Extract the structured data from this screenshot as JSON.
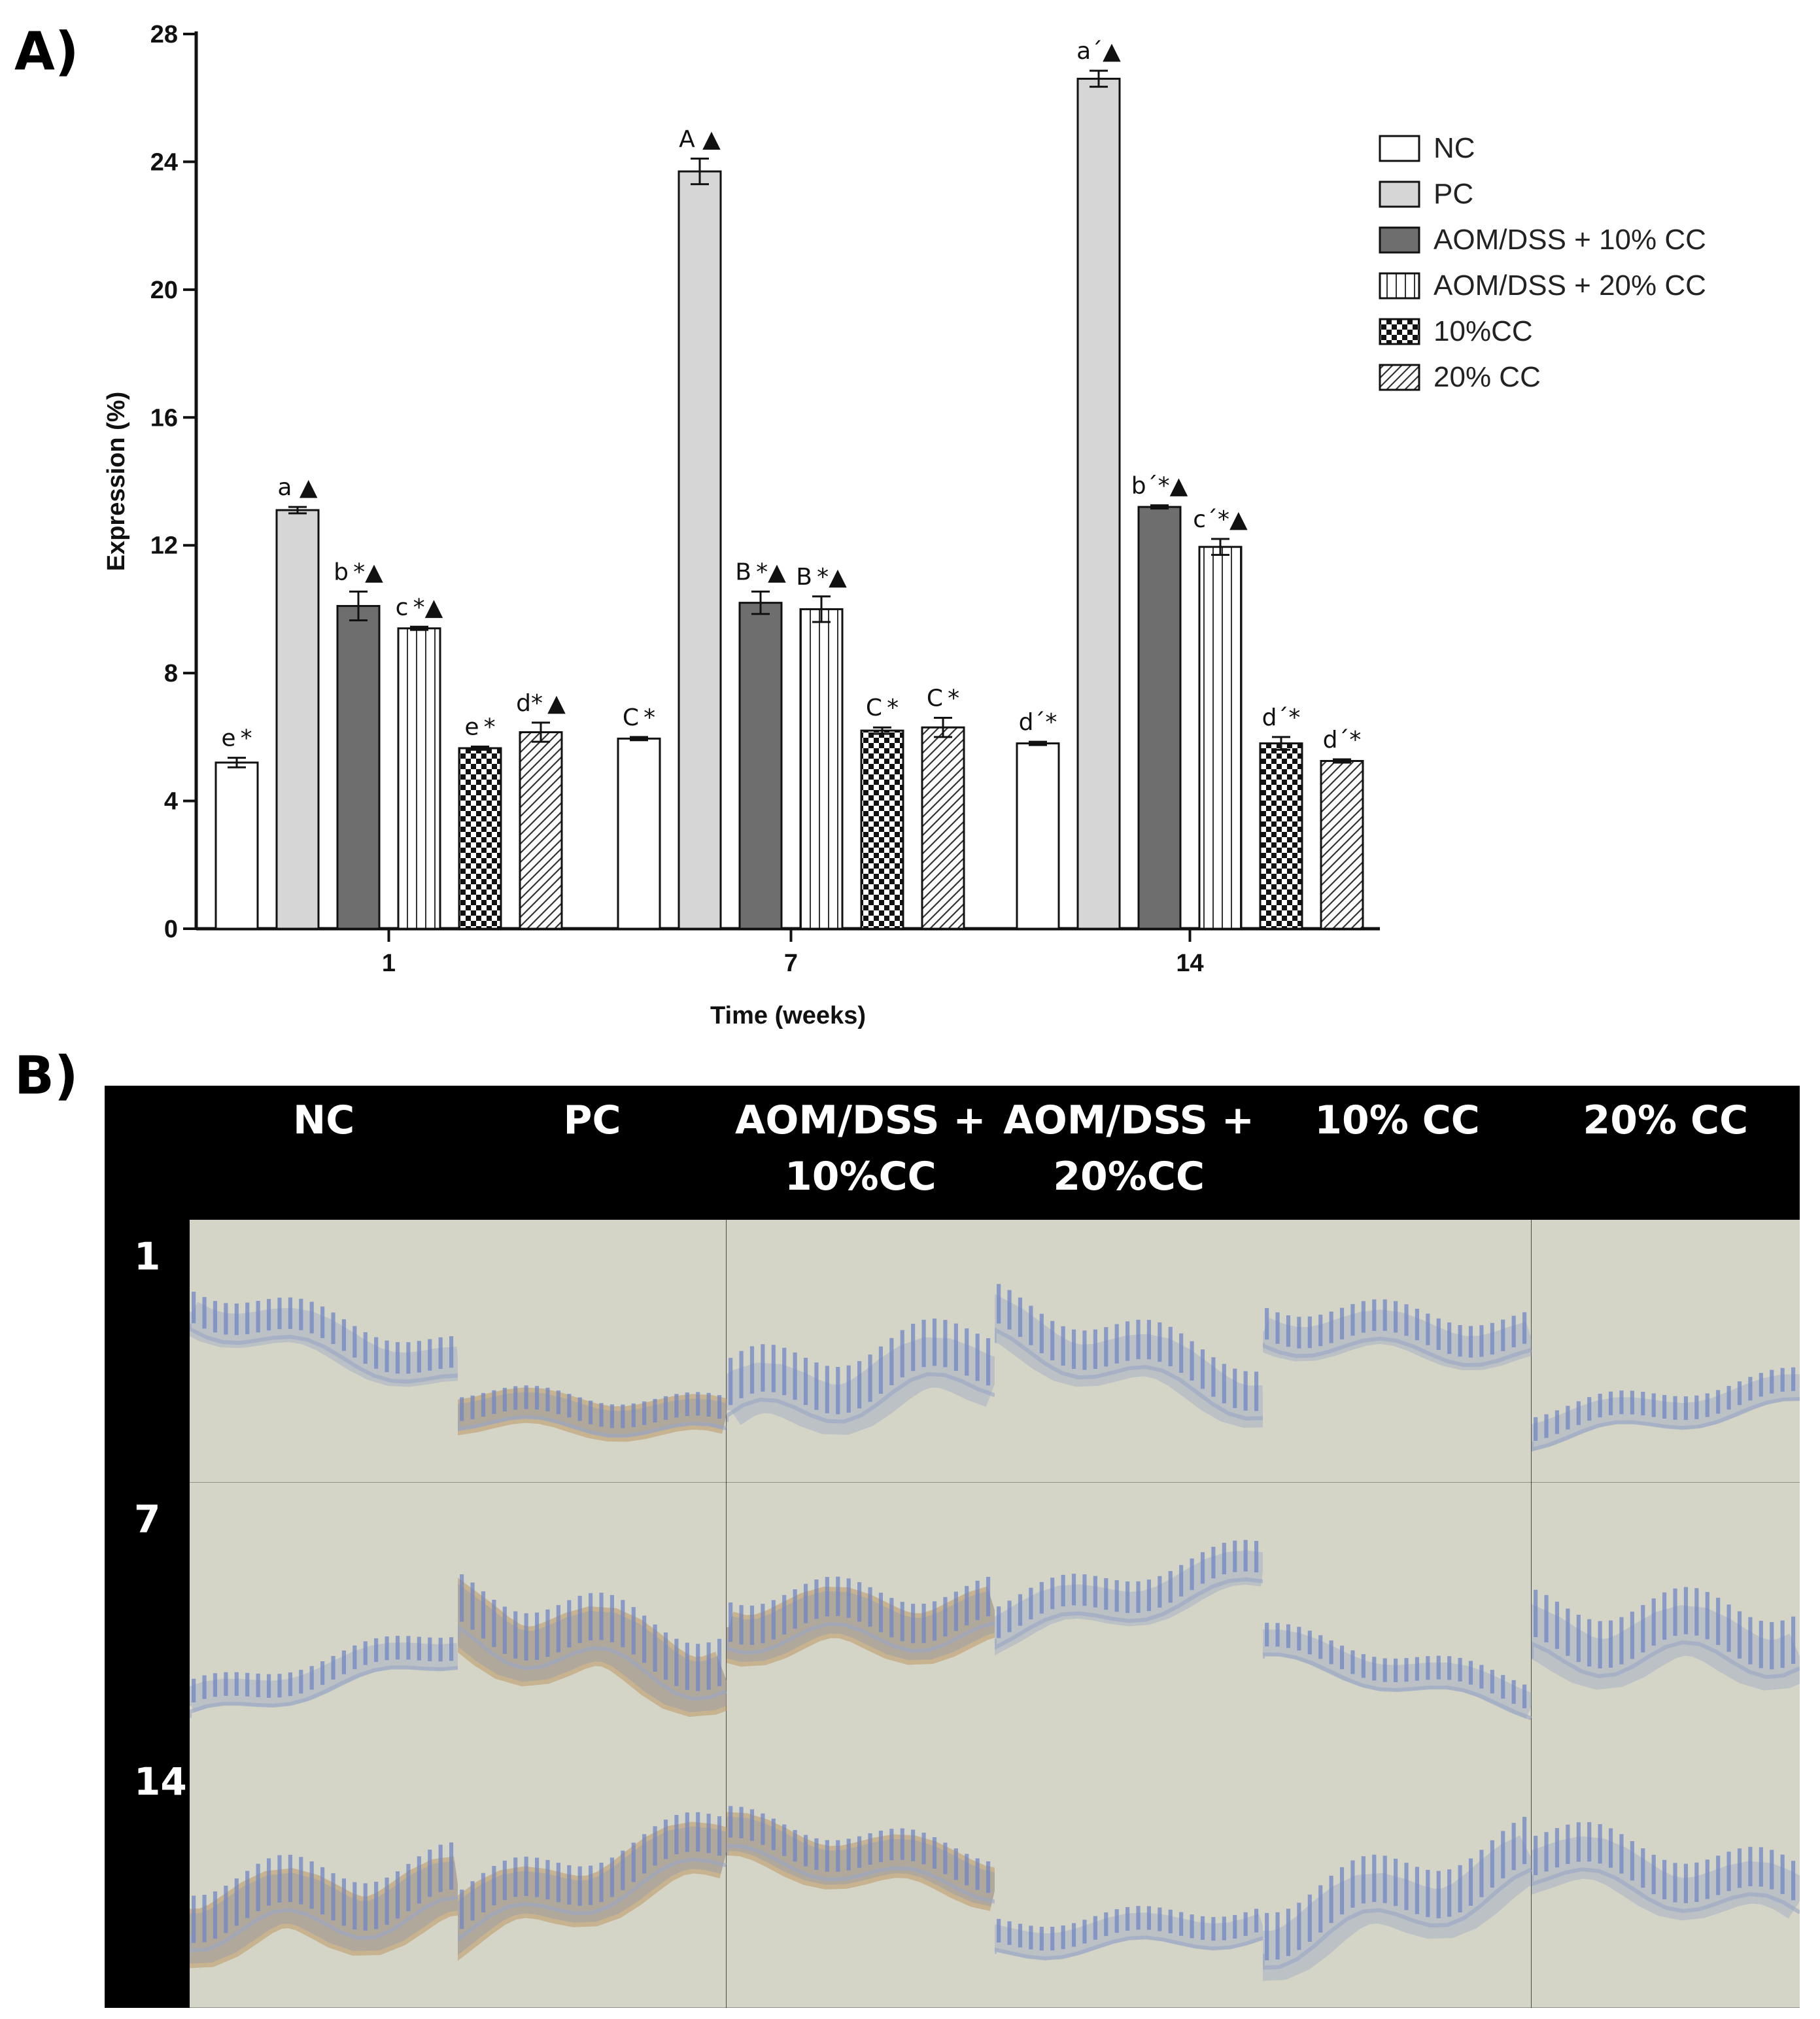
{
  "panel_a_label": "A)",
  "panel_b_label": "B)",
  "colors": {
    "NC": "#ffffff",
    "PC": "#d6d6d6",
    "AOM/DSS + 10% CC": "#6e6e6e",
    "AOM/DSS + 20% CC": "#ffffff",
    "10%CC": "#111111",
    "20% CC": "#ffffff",
    "tissue_bg": "#d9dfc6",
    "tissue_stain": "#6f86c4",
    "tissue_brown": "#b98a4c"
  },
  "chart_data": {
    "type": "bar",
    "title": "",
    "xlabel": "Time (weeks)",
    "ylabel": "Expression (%)",
    "ylim": [
      0,
      28
    ],
    "yticks": [
      0,
      4,
      8,
      12,
      16,
      20,
      24,
      28
    ],
    "categories": [
      "1",
      "7",
      "14"
    ],
    "legend": [
      "NC",
      "PC",
      "AOM/DSS + 10% CC",
      "AOM/DSS + 20% CC",
      "10%CC",
      "20% CC"
    ],
    "legend_position": "top-right",
    "series": [
      {
        "name": "NC",
        "pattern": "white",
        "values": [
          5.2,
          5.95,
          5.8
        ],
        "errors": [
          0.15,
          0.05,
          0.05
        ],
        "labels": [
          "e *",
          "C *",
          "d´*"
        ]
      },
      {
        "name": "PC",
        "pattern": "lightgray",
        "values": [
          13.1,
          23.7,
          26.6
        ],
        "errors": [
          0.1,
          0.4,
          0.25
        ],
        "labels": [
          "a ▲",
          "A ▲",
          "a´▲"
        ]
      },
      {
        "name": "AOM/DSS + 10% CC",
        "pattern": "darkgray",
        "values": [
          10.1,
          10.2,
          13.2
        ],
        "errors": [
          0.45,
          0.35,
          0.05
        ],
        "labels": [
          "b *▲",
          "B *▲",
          "b´*▲"
        ]
      },
      {
        "name": "AOM/DSS + 20% CC",
        "pattern": "vertical",
        "values": [
          9.4,
          10.0,
          11.95
        ],
        "errors": [
          0.05,
          0.4,
          0.25
        ],
        "labels": [
          "c *▲",
          "B *▲",
          "c´*▲"
        ]
      },
      {
        "name": "10%CC",
        "pattern": "checker",
        "values": [
          5.65,
          6.2,
          5.8
        ],
        "errors": [
          0.05,
          0.1,
          0.2
        ],
        "labels": [
          "e *",
          "C *",
          "d´*"
        ]
      },
      {
        "name": "20% CC",
        "pattern": "diagonal",
        "values": [
          6.15,
          6.3,
          5.25
        ],
        "errors": [
          0.3,
          0.3,
          0.05
        ],
        "labels": [
          "d* ▲",
          "C *",
          "d´*"
        ]
      }
    ]
  },
  "panel_b": {
    "columns": [
      "NC",
      "PC",
      "AOM/DSS +\n10%CC",
      "AOM/DSS +\n20%CC",
      "10% CC",
      "20% CC"
    ],
    "rows": [
      "1",
      "7",
      "14"
    ],
    "brown_cells": [
      [
        0,
        1
      ],
      [
        1,
        1
      ],
      [
        1,
        2
      ],
      [
        2,
        0
      ],
      [
        2,
        1
      ],
      [
        2,
        2
      ]
    ]
  }
}
